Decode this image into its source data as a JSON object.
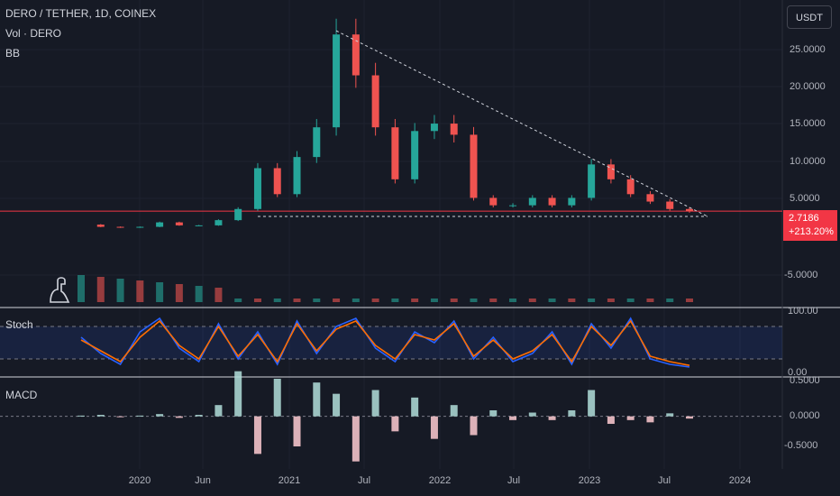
{
  "header": {
    "symbol_line": "DERO / TETHER, 1D, COINEX",
    "volume_label": "Vol · DERO",
    "bb_label": "BB"
  },
  "currency_button": "USDT",
  "price_badge": {
    "price": "2.7186",
    "change": "+213.20%",
    "color": "#f23645"
  },
  "panes": {
    "stoch_label": "Stoch",
    "macd_label": "MACD"
  },
  "colors": {
    "background": "#161a25",
    "candle_up": "#26a69a",
    "candle_down": "#ef5350",
    "stoch_k": "#2962ff",
    "stoch_d": "#ff6d00",
    "bb_line": "#ff9800"
  },
  "chart_data": [
    {
      "type": "candlestick",
      "title": "DERO / TETHER, 1D, COINEX",
      "x_ticks": [
        "2020",
        "Jun",
        "2021",
        "Jul",
        "2022",
        "Jul",
        "2023",
        "Jul",
        "2024"
      ],
      "y_ticks": [
        "25.0000",
        "20.0000",
        "15.0000",
        "10.0000",
        "5.0000",
        "-5.0000"
      ],
      "x": [
        "2019-08",
        "2019-11",
        "2020-02",
        "2020-05",
        "2020-08",
        "2020-11",
        "2021-01",
        "2021-03",
        "2021-05",
        "2021-06",
        "2021-07",
        "2021-08",
        "2021-09",
        "2021-10",
        "2021-11",
        "2022-01",
        "2022-02",
        "2022-03",
        "2022-04",
        "2022-05",
        "2022-06",
        "2022-08",
        "2022-10",
        "2022-12",
        "2023-02",
        "2023-03",
        "2023-04",
        "2023-05",
        "2023-06",
        "2023-07",
        "2023-08",
        "2023-09"
      ],
      "close": [
        0.9,
        0.6,
        0.5,
        0.6,
        1.2,
        0.8,
        0.8,
        1.5,
        3.0,
        8.5,
        5.0,
        10.0,
        14.0,
        26.5,
        21.0,
        14.0,
        7.0,
        13.5,
        14.5,
        13.0,
        4.5,
        3.5,
        3.5,
        4.5,
        3.5,
        4.5,
        9.0,
        7.0,
        5.0,
        4.0,
        3.0,
        2.7186
      ],
      "trendlines": [
        {
          "name": "descending resistance",
          "from": [
            "2021-10",
            27.0
          ],
          "to": [
            "2023-09",
            2.0
          ]
        },
        {
          "name": "support",
          "from": [
            "2021-06",
            2.0
          ],
          "to": [
            "2023-09",
            2.0
          ]
        }
      ],
      "last_price": 2.7186,
      "change": "+213.20%"
    },
    {
      "type": "line",
      "title": "Stoch",
      "y_ticks": [
        "100.00",
        "0.00"
      ],
      "ylim": [
        0,
        100
      ],
      "band": [
        20,
        80
      ],
      "series": [
        {
          "values": [
            60,
            30,
            10,
            70,
            95,
            40,
            15,
            85,
            20,
            70,
            10,
            90,
            30,
            80,
            95,
            40,
            15,
            70,
            50,
            90,
            20,
            60,
            15,
            30,
            70,
            10,
            85,
            40,
            95,
            20,
            10,
            5
          ]
        },
        {
          "values": [
            55,
            35,
            15,
            60,
            90,
            45,
            20,
            80,
            25,
            65,
            15,
            85,
            35,
            75,
            90,
            45,
            20,
            65,
            55,
            85,
            25,
            55,
            20,
            35,
            65,
            15,
            80,
            45,
            90,
            25,
            15,
            8
          ]
        }
      ]
    },
    {
      "type": "bar",
      "title": "MACD",
      "y_ticks": [
        "0.5000",
        "0.0000",
        "-0.5000"
      ],
      "ylim": [
        -0.7,
        0.5
      ],
      "values": [
        0.01,
        0.02,
        -0.01,
        0.01,
        0.03,
        -0.02,
        0.02,
        0.15,
        0.6,
        -0.5,
        0.5,
        -0.4,
        0.45,
        0.3,
        -0.6,
        0.35,
        -0.2,
        0.25,
        -0.3,
        0.15,
        -0.25,
        0.08,
        -0.05,
        0.05,
        -0.05,
        0.08,
        0.35,
        -0.1,
        -0.05,
        -0.08,
        0.04,
        -0.03
      ]
    }
  ]
}
